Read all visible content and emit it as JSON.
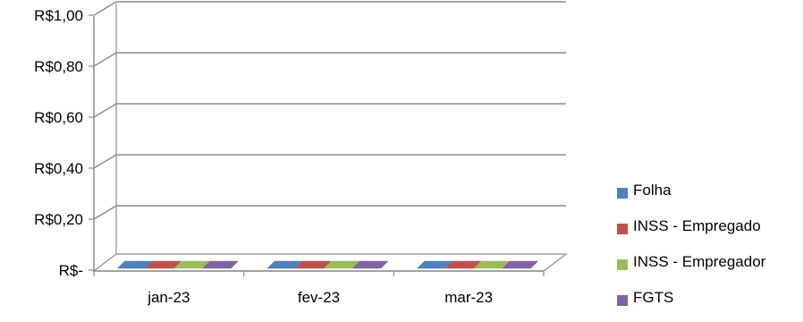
{
  "chart_data": {
    "type": "bar",
    "variant": "3d-clustered-column",
    "title": "",
    "xlabel": "",
    "ylabel": "",
    "categories": [
      "jan-23",
      "fev-23",
      "mar-23"
    ],
    "series": [
      {
        "name": "Folha",
        "values": [
          0,
          0,
          0
        ],
        "color": "#4F81BD"
      },
      {
        "name": "INSS - Empregado",
        "values": [
          0,
          0,
          0
        ],
        "color": "#C0504D"
      },
      {
        "name": "INSS - Empregador",
        "values": [
          0,
          0,
          0
        ],
        "color": "#9BBB59"
      },
      {
        "name": "FGTS",
        "values": [
          0,
          0,
          0
        ],
        "color": "#8064A2"
      }
    ],
    "ylim": [
      0,
      1
    ],
    "yticks": [
      0,
      0.2,
      0.4,
      0.6,
      0.8,
      1.0
    ],
    "ytick_labels": [
      "R$-",
      "R$0,20",
      "R$0,40",
      "R$0,60",
      "R$0,80",
      "R$1,00"
    ],
    "grid": true,
    "legend_position": "right"
  }
}
